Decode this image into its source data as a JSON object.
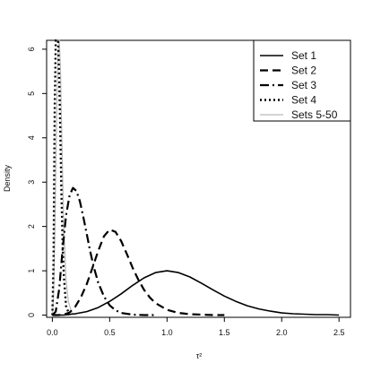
{
  "chart_data": {
    "type": "line",
    "title": "",
    "xlabel": "τ²",
    "ylabel": "Density",
    "xlim": [
      -0.05,
      2.6
    ],
    "ylim": [
      -0.05,
      6.2
    ],
    "xticks": [
      0.0,
      0.5,
      1.0,
      1.5,
      2.0,
      2.5
    ],
    "xtick_labels": [
      "0.0",
      "0.5",
      "1.0",
      "1.5",
      "2.0",
      "2.5"
    ],
    "yticks": [
      0,
      1,
      2,
      3,
      4,
      5,
      6
    ],
    "ytick_labels": [
      "0",
      "1",
      "2",
      "3",
      "4",
      "5",
      "6"
    ],
    "grid": false,
    "legend_position": "top-right",
    "series": [
      {
        "name": "Set 1",
        "line_style": "solid",
        "color": "#000000",
        "x": [
          0.0,
          0.1,
          0.2,
          0.3,
          0.4,
          0.5,
          0.6,
          0.7,
          0.8,
          0.9,
          1.0,
          1.1,
          1.2,
          1.3,
          1.4,
          1.5,
          1.6,
          1.7,
          1.8,
          1.9,
          2.0,
          2.1,
          2.2,
          2.3,
          2.4,
          2.5
        ],
        "values": [
          0.0,
          0.0,
          0.03,
          0.08,
          0.17,
          0.31,
          0.48,
          0.67,
          0.84,
          0.96,
          1.0,
          0.96,
          0.86,
          0.72,
          0.57,
          0.43,
          0.31,
          0.21,
          0.14,
          0.09,
          0.05,
          0.03,
          0.02,
          0.01,
          0.01,
          0.0
        ]
      },
      {
        "name": "Set 2",
        "line_style": "dashed",
        "color": "#000000",
        "x": [
          0.0,
          0.05,
          0.1,
          0.15,
          0.2,
          0.25,
          0.3,
          0.35,
          0.4,
          0.45,
          0.5,
          0.55,
          0.6,
          0.65,
          0.7,
          0.75,
          0.8,
          0.85,
          0.9,
          1.0,
          1.1,
          1.2,
          1.3,
          1.4,
          1.5
        ],
        "values": [
          0.0,
          0.0,
          0.01,
          0.06,
          0.19,
          0.41,
          0.7,
          1.07,
          1.45,
          1.78,
          1.93,
          1.88,
          1.67,
          1.38,
          1.07,
          0.8,
          0.57,
          0.4,
          0.27,
          0.12,
          0.05,
          0.02,
          0.01,
          0.0,
          0.0
        ]
      },
      {
        "name": "Set 3",
        "line_style": "dashdot",
        "color": "#000000",
        "x": [
          0.0,
          0.03,
          0.06,
          0.09,
          0.12,
          0.15,
          0.18,
          0.21,
          0.24,
          0.27,
          0.3,
          0.33,
          0.36,
          0.4,
          0.45,
          0.5,
          0.55,
          0.6,
          0.7,
          0.8,
          0.9
        ],
        "values": [
          0.0,
          0.08,
          0.6,
          1.5,
          2.25,
          2.7,
          2.87,
          2.8,
          2.57,
          2.22,
          1.83,
          1.44,
          1.1,
          0.73,
          0.42,
          0.22,
          0.11,
          0.05,
          0.01,
          0.0,
          0.0
        ]
      },
      {
        "name": "Set 4",
        "line_style": "dotted",
        "color": "#000000",
        "x": [
          0.0,
          0.01,
          0.02,
          0.03,
          0.04,
          0.05,
          0.06,
          0.07,
          0.08,
          0.09,
          0.1,
          0.12,
          0.15
        ],
        "values": [
          0.0,
          1.2,
          4.6,
          6.2,
          6.2,
          6.2,
          5.3,
          4.0,
          2.7,
          1.6,
          0.9,
          0.2,
          0.0
        ]
      },
      {
        "name": "Sets 5-50",
        "line_style": "solid",
        "color": "#bbbbbb",
        "x": [
          0.0,
          0.01,
          0.02,
          0.03,
          0.04,
          0.05,
          0.06,
          0.07,
          0.08,
          0.09,
          0.1,
          0.12,
          0.14,
          0.17,
          0.2
        ],
        "values": [
          0.0,
          0.4,
          1.6,
          3.2,
          4.8,
          5.9,
          6.2,
          5.6,
          4.4,
          3.1,
          2.0,
          0.8,
          0.3,
          0.05,
          0.0
        ]
      }
    ]
  }
}
